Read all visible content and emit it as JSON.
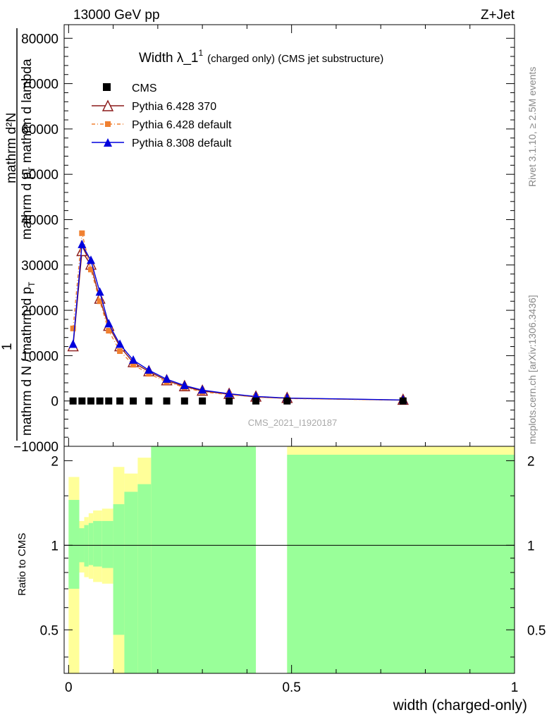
{
  "header": {
    "left": "13000 GeV pp",
    "right": "Z+Jet"
  },
  "side_labels": {
    "rivet": "Rivet 3.1.10, ≥ 2.5M events",
    "mcplots": "mcplots.cern.ch [arXiv:1306.3436]"
  },
  "chart_data": [
    {
      "type": "line",
      "title_main": "Width λ_1",
      "title_sup": "1",
      "title_suffix": "(charged only) (CMS jet substructure)",
      "ylabel_line1": "mathrm d²N",
      "ylabel_line2": "mathrm d p",
      "ylabel_line2_sub": "T",
      "ylabel_line2_rest": " mathrm d lambda",
      "ylabel_line3": "1",
      "ylabel_line4": "mathrm d N / mathrm d p",
      "ylabel_line4_sub": "T",
      "watermark": "CMS_2021_I1920187",
      "xlim": [
        -0.01,
        1.0
      ],
      "ylim": [
        -10000,
        83000
      ],
      "yticks": [
        -10000,
        0,
        10000,
        20000,
        30000,
        40000,
        50000,
        60000,
        70000,
        80000
      ],
      "ytick_labels": [
        "−10000",
        "0",
        "10000",
        "20000",
        "30000",
        "40000",
        "50000",
        "60000",
        "70000",
        "80000"
      ],
      "legend_position": "top-left",
      "series": [
        {
          "name": "CMS",
          "color": "#000000",
          "marker": "square",
          "x": [
            0.01,
            0.03,
            0.05,
            0.07,
            0.09,
            0.115,
            0.145,
            0.18,
            0.22,
            0.26,
            0.3,
            0.36,
            0.42,
            0.49,
            0.75
          ],
          "y": [
            0,
            0,
            0,
            0,
            0,
            0,
            0,
            0,
            0,
            0,
            0,
            0,
            0,
            0,
            0
          ]
        },
        {
          "name": "Pythia 6.428 370",
          "color": "#8b1a1a",
          "marker": "open-triangle",
          "x": [
            0.01,
            0.03,
            0.05,
            0.07,
            0.09,
            0.115,
            0.145,
            0.18,
            0.22,
            0.26,
            0.3,
            0.36,
            0.42,
            0.49,
            0.75
          ],
          "y": [
            12000,
            33000,
            30000,
            22500,
            16500,
            12000,
            8500,
            6500,
            4500,
            3200,
            2200,
            1500,
            900,
            600,
            200
          ]
        },
        {
          "name": "Pythia 6.428 default",
          "color": "#f08030",
          "marker": "square-small",
          "x": [
            0.01,
            0.03,
            0.05,
            0.07,
            0.09,
            0.115,
            0.145,
            0.18,
            0.22,
            0.26,
            0.3,
            0.36,
            0.42,
            0.49,
            0.75
          ],
          "y": [
            16000,
            37000,
            29000,
            22000,
            15500,
            11000,
            8000,
            6000,
            4200,
            3000,
            2000,
            1400,
            850,
            550,
            180
          ]
        },
        {
          "name": "Pythia 8.308 default",
          "color": "#0000dd",
          "marker": "filled-triangle",
          "x": [
            0.01,
            0.03,
            0.05,
            0.07,
            0.09,
            0.115,
            0.145,
            0.18,
            0.22,
            0.26,
            0.3,
            0.36,
            0.42,
            0.49,
            0.75
          ],
          "y": [
            12500,
            34500,
            31000,
            24000,
            17000,
            12500,
            9000,
            6800,
            4800,
            3400,
            2400,
            1600,
            1000,
            650,
            220
          ]
        }
      ]
    },
    {
      "type": "area",
      "ylabel": "Ratio to CMS",
      "xlabel": "width (charged-only)",
      "xlim": [
        -0.01,
        1.0
      ],
      "ylim": [
        0.35,
        2.25
      ],
      "yticks": [
        0.5,
        1,
        2
      ],
      "ytick_labels": [
        "0.5",
        "1",
        "2"
      ],
      "xticks": [
        0,
        0.5,
        1
      ],
      "xtick_labels": [
        "0",
        "0.5",
        "1"
      ],
      "reference_line": 1,
      "bands": [
        {
          "name": "yellow",
          "color": "#ffff99"
        },
        {
          "name": "green",
          "color": "#99ff99"
        }
      ],
      "bins": [
        {
          "x0": 0.0,
          "x1": 0.024,
          "y_lo": 0.35,
          "y_hi": 1.75,
          "g_lo": 0.7,
          "g_hi": 1.45
        },
        {
          "x0": 0.024,
          "x1": 0.035,
          "y_lo": 0.8,
          "y_hi": 1.22,
          "g_lo": 0.87,
          "g_hi": 1.15
        },
        {
          "x0": 0.035,
          "x1": 0.045,
          "y_lo": 0.77,
          "y_hi": 1.26,
          "g_lo": 0.84,
          "g_hi": 1.18
        },
        {
          "x0": 0.045,
          "x1": 0.055,
          "y_lo": 0.76,
          "y_hi": 1.3,
          "g_lo": 0.85,
          "g_hi": 1.2
        },
        {
          "x0": 0.055,
          "x1": 0.075,
          "y_lo": 0.74,
          "y_hi": 1.33,
          "g_lo": 0.84,
          "g_hi": 1.22
        },
        {
          "x0": 0.075,
          "x1": 0.1,
          "y_lo": 0.73,
          "y_hi": 1.35,
          "g_lo": 0.83,
          "g_hi": 1.22
        },
        {
          "x0": 0.1,
          "x1": 0.125,
          "y_lo": 0.35,
          "y_hi": 1.9,
          "g_lo": 0.48,
          "g_hi": 1.4
        },
        {
          "x0": 0.125,
          "x1": 0.155,
          "y_lo": 0.35,
          "y_hi": 1.8,
          "g_lo": 0.35,
          "g_hi": 1.55
        },
        {
          "x0": 0.155,
          "x1": 0.185,
          "y_lo": 0.35,
          "y_hi": 2.05,
          "g_lo": 0.35,
          "g_hi": 1.65
        },
        {
          "x0": 0.185,
          "x1": 0.42,
          "y_lo": 0.35,
          "y_hi": 2.25,
          "g_lo": 0.35,
          "g_hi": 2.25
        },
        {
          "x0": 0.49,
          "x1": 1.0,
          "y_lo": 0.35,
          "y_hi": 2.25,
          "g_lo": 0.35,
          "g_hi": 2.1
        }
      ]
    }
  ]
}
